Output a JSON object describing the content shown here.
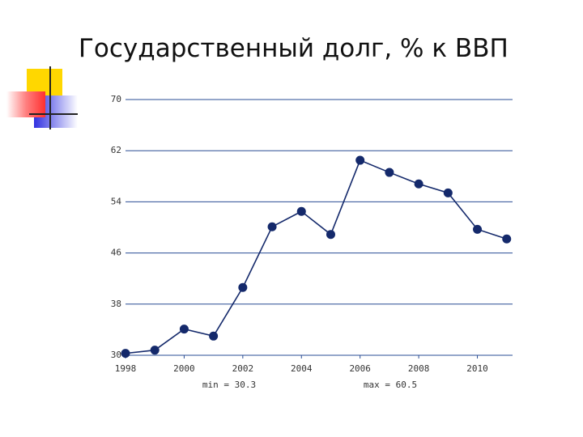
{
  "chart_data": {
    "type": "line",
    "title": "Государственный долг, % к ВВП",
    "x": [
      1998,
      1999,
      2000,
      2001,
      2002,
      2003,
      2004,
      2005,
      2006,
      2007,
      2008,
      2009,
      2010,
      2011
    ],
    "series": [
      {
        "color": "#14296b",
        "values": [
          30.3,
          30.8,
          34.1,
          33.0,
          40.6,
          50.1,
          52.5,
          48.9,
          60.5,
          58.6,
          56.8,
          55.4,
          49.7,
          48.2
        ]
      }
    ],
    "xlim": [
      1998,
      2011.2
    ],
    "xticks": [
      1998,
      2000,
      2002,
      2004,
      2006,
      2008,
      2010
    ],
    "ylim": [
      30,
      70
    ],
    "yticks": [
      30,
      38,
      46,
      54,
      62,
      70
    ],
    "grid": true,
    "grid_color": "#2a4d94",
    "annotations": [
      "min = 30.3",
      "max = 60.5"
    ]
  }
}
